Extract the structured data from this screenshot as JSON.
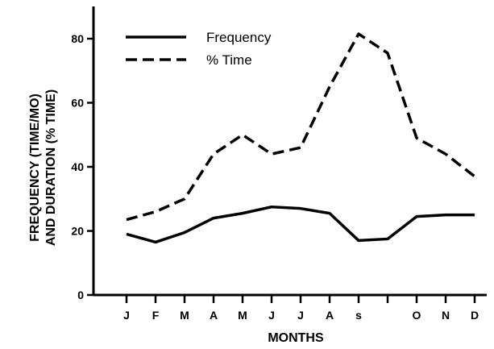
{
  "chart_data": {
    "type": "line",
    "xlabel": "MONTHS",
    "ylabel_line1": "FREQUENCY (TIME/MO)",
    "ylabel_line2": "AND DURATION (% TIME)",
    "categories": [
      "J",
      "F",
      "M",
      "A",
      "M",
      "J",
      "J",
      "A",
      "s",
      "",
      "O",
      "N",
      "D"
    ],
    "yticks": [
      0,
      20,
      40,
      60,
      80
    ],
    "ylim": [
      0,
      86
    ],
    "grid": false,
    "legend_position": "top-left",
    "series": [
      {
        "name": "Frequency",
        "style": "solid",
        "values": [
          19,
          16.5,
          19.5,
          24,
          25.5,
          27.5,
          27,
          25.5,
          17,
          17.5,
          24.5,
          25,
          25
        ]
      },
      {
        "name": "% Time",
        "style": "dashed",
        "values": [
          23.5,
          26,
          30,
          44,
          50,
          44,
          46,
          65,
          81.5,
          75.5,
          49,
          44,
          37
        ]
      }
    ],
    "colors": {
      "line": "#000000",
      "background": "#ffffff"
    }
  }
}
